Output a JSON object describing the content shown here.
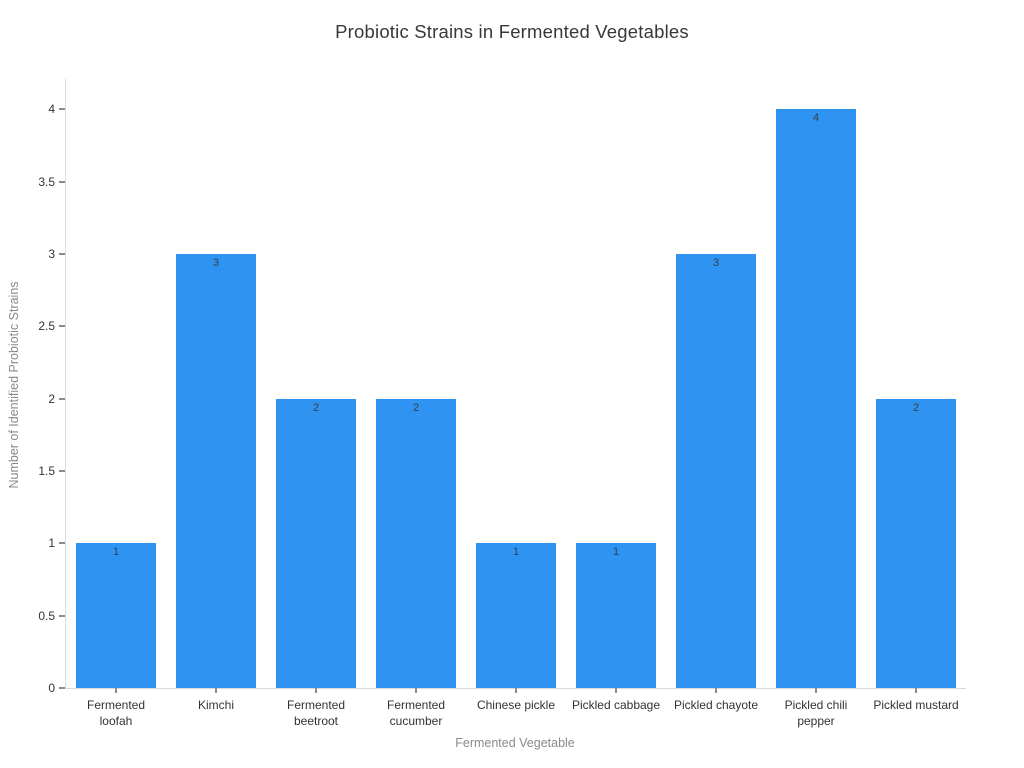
{
  "chart_data": {
    "type": "bar",
    "title": "Probiotic Strains in Fermented Vegetables",
    "xlabel": "Fermented Vegetable",
    "ylabel": "Number of Identified Probiotic Strains",
    "categories": [
      "Fermented loofah",
      "Kimchi",
      "Fermented beetroot",
      "Fermented cucumber",
      "Chinese pickle",
      "Pickled cabbage",
      "Pickled chayote",
      "Pickled chili pepper",
      "Pickled mustard"
    ],
    "values": [
      1,
      3,
      2,
      2,
      1,
      1,
      3,
      4,
      2
    ],
    "yticks": [
      0,
      0.5,
      1,
      1.5,
      2,
      2.5,
      3,
      3.5,
      4
    ],
    "ylim": [
      0,
      4.21
    ],
    "grid": false,
    "legend": null,
    "value_labels_position": "inside-top",
    "bar_color": "#2f93f1",
    "axis_line_color": "#d9d9d9",
    "tick_color": "#8c8c8c",
    "tick_label_color": "#333333",
    "axis_title_color": "#8a8a8a",
    "title_color": "#383838"
  }
}
